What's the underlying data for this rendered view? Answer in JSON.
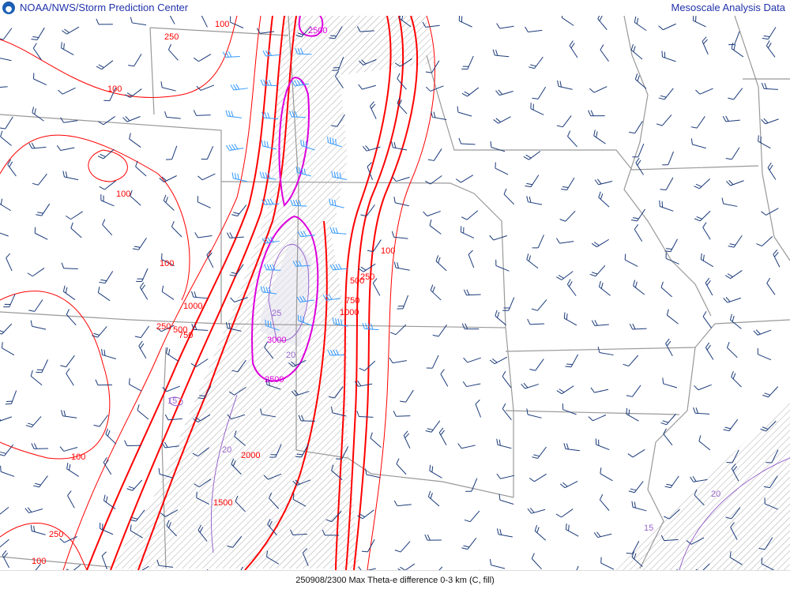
{
  "header": {
    "title": "NOAA/NWS/Storm Prediction Center",
    "right_title": "Mesoscale Analysis Data",
    "logo_icon": "noaa-logo-icon"
  },
  "footer": {
    "caption": "250908/2300 Max Theta-e difference 0-3 km (C, fill)"
  },
  "colors": {
    "cape_contour": "#ff0000",
    "high_contour": "#dd00dd",
    "fill_contour": "#9966cc",
    "barbs": "#1a3a7a",
    "barbs_strong": "#3399ff",
    "borders": "#999999",
    "hatch": "#aaaaaa"
  },
  "contour_labels": {
    "red": [
      "250",
      "100",
      "100",
      "100",
      "100",
      "1000",
      "250",
      "500",
      "750",
      "100",
      "250",
      "100",
      "1500",
      "2000",
      "100",
      "250",
      "500",
      "750",
      "1000"
    ],
    "magenta": [
      "2500",
      "3000",
      "2500"
    ],
    "purple": [
      "25",
      "20",
      "20",
      "20",
      "15",
      "15"
    ]
  }
}
